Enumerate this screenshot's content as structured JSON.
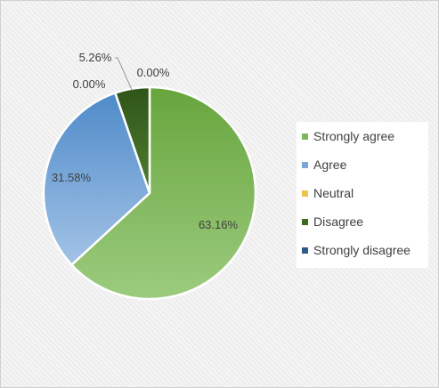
{
  "chart_data": {
    "type": "pie",
    "title": "",
    "categories": [
      "Strongly agree",
      "Agree",
      "Neutral",
      "Disagree",
      "Strongly disagree"
    ],
    "values": [
      63.16,
      31.58,
      0.0,
      5.26,
      0.0
    ],
    "data_labels": [
      "63.16%",
      "31.58%",
      "0.00%",
      "5.26%",
      "0.00%"
    ],
    "colors": [
      "#7fb75a",
      "#7aa7d6",
      "#f0c24a",
      "#3e6a22",
      "#2f5a8a"
    ],
    "start_direction": "top",
    "legend_position": "right"
  }
}
